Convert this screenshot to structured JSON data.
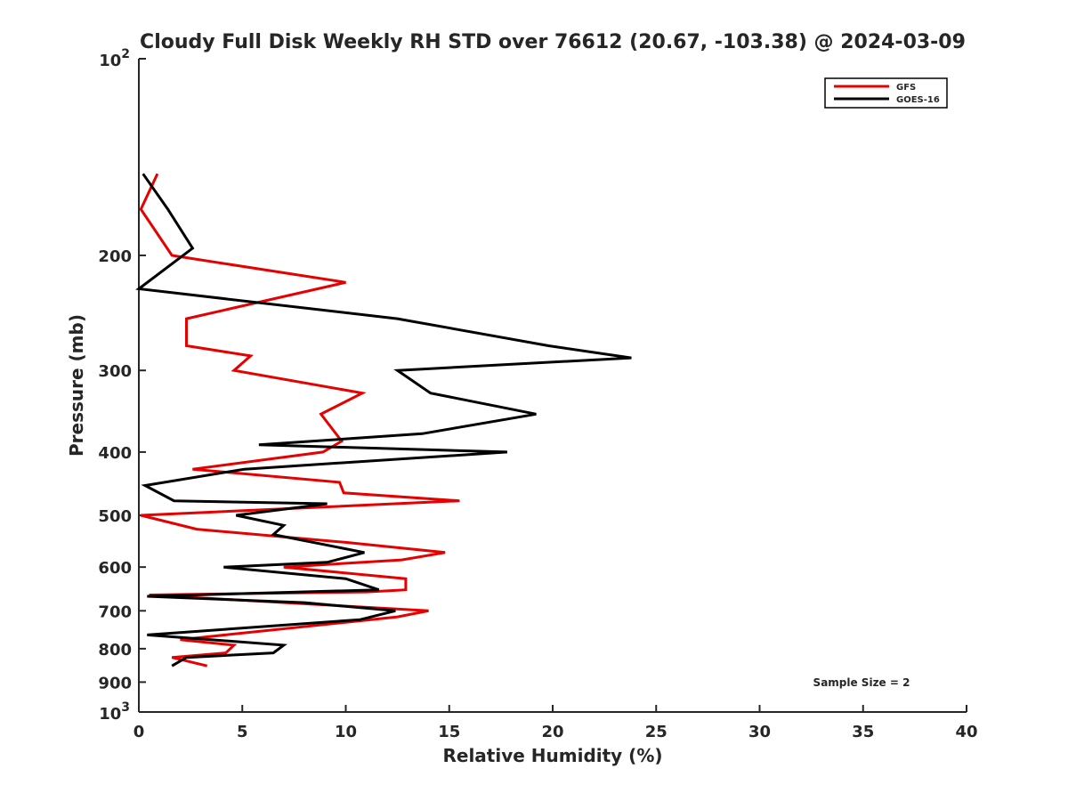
{
  "chart_data": {
    "type": "line",
    "title": "Cloudy Full Disk Weekly RH STD over 76612 (20.67, -103.38) @ 2024-03-09",
    "xlabel": "Relative Humidity (%)",
    "ylabel": "Pressure (mb)",
    "xlim": [
      0,
      40
    ],
    "ylim": [
      1000,
      100
    ],
    "yscale": "log",
    "grid": false,
    "legend_position": "top-right",
    "x_ticks": [
      {
        "value": 0,
        "label": "0"
      },
      {
        "value": 5,
        "label": "5"
      },
      {
        "value": 10,
        "label": "10"
      },
      {
        "value": 15,
        "label": "15"
      },
      {
        "value": 20,
        "label": "20"
      },
      {
        "value": 25,
        "label": "25"
      },
      {
        "value": 30,
        "label": "30"
      },
      {
        "value": 35,
        "label": "35"
      },
      {
        "value": 40,
        "label": "40"
      }
    ],
    "y_ticks": [
      {
        "value": 200,
        "label": "200"
      },
      {
        "value": 300,
        "label": "300"
      },
      {
        "value": 400,
        "label": "400"
      },
      {
        "value": 500,
        "label": "500"
      },
      {
        "value": 600,
        "label": "600"
      },
      {
        "value": 700,
        "label": "700"
      },
      {
        "value": 800,
        "label": "800"
      },
      {
        "value": 900,
        "label": "900"
      }
    ],
    "y_decade_ticks": [
      {
        "value": 100,
        "base": "10",
        "exp": "2"
      },
      {
        "value": 1000,
        "base": "10",
        "exp": "3"
      }
    ],
    "annotation": "Sample Size = 2",
    "series": [
      {
        "name": "GFS",
        "color": "#e60000",
        "points": [
          [
            0.9,
            150
          ],
          [
            0.1,
            170
          ],
          [
            1.6,
            200
          ],
          [
            10.0,
            220
          ],
          [
            2.3,
            250
          ],
          [
            2.3,
            275
          ],
          [
            5.4,
            285
          ],
          [
            4.6,
            300
          ],
          [
            10.8,
            325
          ],
          [
            8.8,
            350
          ],
          [
            9.8,
            385
          ],
          [
            8.9,
            400
          ],
          [
            2.6,
            425
          ],
          [
            9.7,
            445
          ],
          [
            9.9,
            462
          ],
          [
            15.5,
            475
          ],
          [
            0.1,
            500
          ],
          [
            2.8,
            525
          ],
          [
            10.0,
            550
          ],
          [
            14.8,
            570
          ],
          [
            12.7,
            585
          ],
          [
            7.0,
            600
          ],
          [
            12.9,
            625
          ],
          [
            12.9,
            650
          ],
          [
            11.0,
            655
          ],
          [
            0.5,
            662
          ],
          [
            14.0,
            700
          ],
          [
            12.5,
            715
          ],
          [
            2.0,
            775
          ],
          [
            4.6,
            790
          ],
          [
            4.2,
            812
          ],
          [
            1.6,
            825
          ],
          [
            3.3,
            850
          ]
        ]
      },
      {
        "name": "GOES-16",
        "color": "#000000",
        "points": [
          [
            0.2,
            150
          ],
          [
            1.4,
            170
          ],
          [
            2.6,
            195
          ],
          [
            0.0,
            225
          ],
          [
            12.5,
            250
          ],
          [
            19.8,
            275
          ],
          [
            23.8,
            287
          ],
          [
            12.5,
            300
          ],
          [
            14.1,
            325
          ],
          [
            19.2,
            350
          ],
          [
            13.7,
            375
          ],
          [
            5.8,
            390
          ],
          [
            17.8,
            400
          ],
          [
            5.1,
            425
          ],
          [
            0.3,
            450
          ],
          [
            1.7,
            475
          ],
          [
            9.1,
            480
          ],
          [
            4.7,
            500
          ],
          [
            7.0,
            518
          ],
          [
            6.5,
            535
          ],
          [
            10.9,
            570
          ],
          [
            9.1,
            590
          ],
          [
            4.1,
            600
          ],
          [
            10.0,
            625
          ],
          [
            11.6,
            650
          ],
          [
            0.4,
            665
          ],
          [
            8.0,
            680
          ],
          [
            12.4,
            700
          ],
          [
            10.7,
            722
          ],
          [
            0.4,
            762
          ],
          [
            7.0,
            790
          ],
          [
            6.5,
            812
          ],
          [
            2.3,
            825
          ],
          [
            1.6,
            850
          ]
        ]
      }
    ]
  }
}
